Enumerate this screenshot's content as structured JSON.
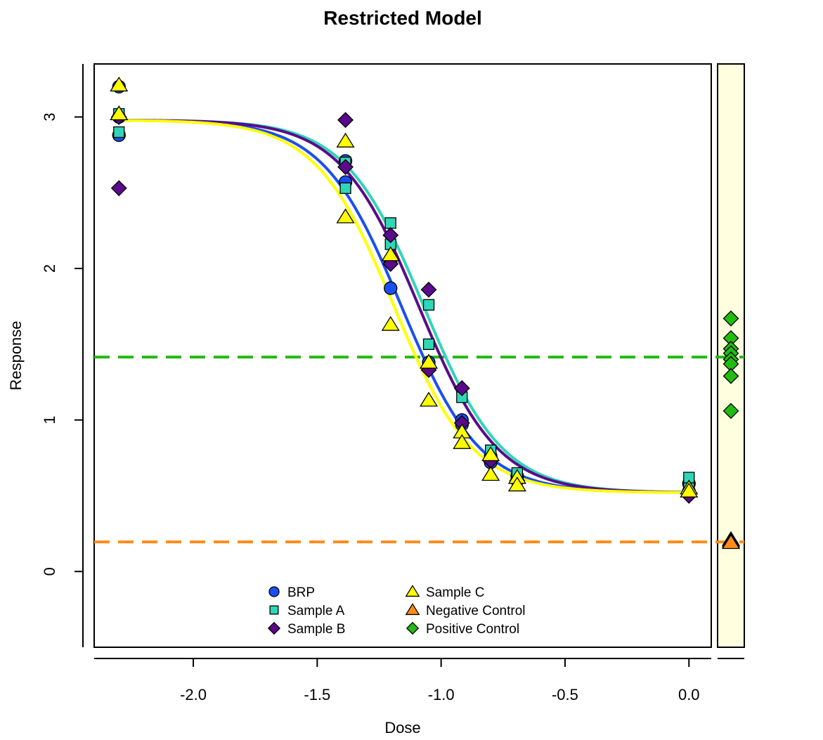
{
  "chart_data": {
    "type": "scatter",
    "title": "Restricted Model",
    "xlabel": "Dose",
    "ylabel": "Response",
    "xlim": [
      -2.4,
      0.09
    ],
    "ylim": [
      -0.5,
      3.35
    ],
    "x_ticks": [
      -2.0,
      -1.5,
      -1.0,
      -0.5,
      0.0
    ],
    "x_tick_labels": [
      "-2.0",
      "-1.5",
      "-1.0",
      "-0.5",
      "0.0"
    ],
    "y_ticks": [
      0,
      1,
      2,
      3
    ],
    "y_tick_labels": [
      "0",
      "1",
      "2",
      "3"
    ],
    "grid": false,
    "legend_position": "bottom-center",
    "colors": {
      "BRP": "#1a4ff0",
      "Sample A": "#2fd6b8",
      "Sample B": "#5a0a8a",
      "Sample C": "#ffff00",
      "Negative Control": "#ff8c1a",
      "Positive Control": "#22bb10",
      "control_panel_bg": "#ffffe0"
    },
    "curves": [
      {
        "name": "BRP",
        "lower": 0.52,
        "upper": 2.98,
        "ec50": -1.16,
        "slope": 6.3
      },
      {
        "name": "Sample A",
        "lower": 0.52,
        "upper": 2.98,
        "ec50": -1.07,
        "slope": 6.3
      },
      {
        "name": "Sample B",
        "lower": 0.52,
        "upper": 2.98,
        "ec50": -1.09,
        "slope": 6.3
      },
      {
        "name": "Sample C",
        "lower": 0.52,
        "upper": 2.98,
        "ec50": -1.19,
        "slope": 6.3
      }
    ],
    "series": [
      {
        "name": "BRP",
        "marker": "circle",
        "x": [
          -2.3,
          -2.3,
          -2.3,
          -1.386,
          -1.386,
          -1.204,
          -1.204,
          -1.05,
          -1.05,
          -0.916,
          -0.916,
          -0.8,
          -0.8,
          -0.693,
          -0.693,
          0.0,
          0.0
        ],
        "y": [
          2.88,
          3.0,
          3.2,
          2.57,
          2.71,
          1.87,
          2.05,
          1.38,
          1.35,
          1.0,
          0.97,
          0.72,
          0.76,
          0.63,
          0.6,
          0.58,
          0.53
        ]
      },
      {
        "name": "Sample A",
        "marker": "square",
        "x": [
          -2.3,
          -2.3,
          -1.386,
          -1.386,
          -1.204,
          -1.204,
          -1.05,
          -1.05,
          -0.916,
          -0.8,
          -0.693,
          0.0,
          0.0
        ],
        "y": [
          2.9,
          3.02,
          2.53,
          2.7,
          2.3,
          2.16,
          1.76,
          1.5,
          1.15,
          0.8,
          0.65,
          0.62,
          0.55
        ]
      },
      {
        "name": "Sample B",
        "marker": "diamond",
        "x": [
          -2.3,
          -2.3,
          -1.386,
          -1.386,
          -1.204,
          -1.204,
          -1.05,
          -1.05,
          -0.916,
          -0.916,
          -0.8,
          -0.693,
          0.0
        ],
        "y": [
          2.53,
          3.0,
          2.98,
          2.67,
          2.22,
          2.03,
          1.86,
          1.33,
          1.21,
          0.98,
          0.73,
          0.6,
          0.5
        ]
      },
      {
        "name": "Sample C",
        "marker": "triangle",
        "x": [
          -2.3,
          -2.3,
          -1.386,
          -1.386,
          -1.204,
          -1.204,
          -1.05,
          -1.05,
          -0.916,
          -0.916,
          -0.8,
          -0.8,
          -0.693,
          -0.693,
          0.0,
          0.0
        ],
        "y": [
          3.21,
          3.02,
          2.84,
          2.34,
          2.09,
          1.63,
          1.38,
          1.13,
          0.92,
          0.85,
          0.77,
          0.64,
          0.62,
          0.57,
          0.55,
          0.53
        ]
      }
    ],
    "controls": [
      {
        "name": "Negative Control",
        "marker": "triangle",
        "values": [
          0.21,
          0.2,
          0.19
        ]
      },
      {
        "name": "Positive Control",
        "marker": "diamond",
        "values": [
          1.67,
          1.54,
          1.47,
          1.44,
          1.4,
          1.37,
          1.29,
          1.06
        ]
      }
    ],
    "reference_lines": [
      {
        "name": "Positive Control",
        "y": 1.415,
        "style": "dashed"
      },
      {
        "name": "Negative Control",
        "y": 0.195,
        "style": "dashed"
      }
    ],
    "legend": [
      {
        "name": "BRP",
        "marker": "circle"
      },
      {
        "name": "Sample A",
        "marker": "square"
      },
      {
        "name": "Sample B",
        "marker": "diamond"
      },
      {
        "name": "Sample C",
        "marker": "triangle"
      },
      {
        "name": "Negative Control",
        "marker": "triangle"
      },
      {
        "name": "Positive Control",
        "marker": "diamond"
      }
    ]
  }
}
